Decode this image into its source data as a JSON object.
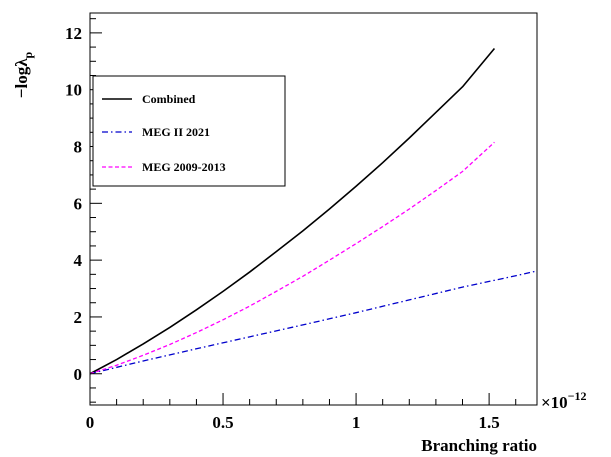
{
  "chart_data": {
    "type": "line",
    "title": "",
    "xlabel": "Branching ratio",
    "ylabel": "−logλ",
    "ylabel_subscript": "p",
    "x_multiplier": "×10",
    "x_multiplier_exp": "−12",
    "xlim": [
      0,
      1.68
    ],
    "ylim": [
      -1.1,
      12.7
    ],
    "x_ticks": [
      0,
      0.5,
      1,
      1.5
    ],
    "x_tick_labels": [
      "0",
      "0.5",
      "1",
      "1.5"
    ],
    "y_ticks": [
      0,
      2,
      4,
      6,
      8,
      10,
      12
    ],
    "y_tick_labels": [
      "0",
      "2",
      "4",
      "6",
      "8",
      "10",
      "12"
    ],
    "grid": false,
    "legend_position": "upper-left",
    "series": [
      {
        "name": "Combined",
        "color": "#000000",
        "style": "solid",
        "x": [
          0,
          0.1,
          0.2,
          0.3,
          0.4,
          0.5,
          0.6,
          0.7,
          0.8,
          0.9,
          1.0,
          1.1,
          1.2,
          1.3,
          1.4,
          1.52
        ],
        "y": [
          0,
          0.5,
          1.05,
          1.63,
          2.25,
          2.9,
          3.58,
          4.3,
          5.03,
          5.8,
          6.6,
          7.43,
          8.3,
          9.2,
          10.1,
          11.45
        ]
      },
      {
        "name": "MEG II 2021",
        "color": "#0000cc",
        "style": "dashdot",
        "x": [
          0,
          0.2,
          0.4,
          0.6,
          0.8,
          1.0,
          1.2,
          1.4,
          1.6,
          1.68
        ],
        "y": [
          0,
          0.45,
          0.88,
          1.3,
          1.72,
          2.15,
          2.6,
          3.05,
          3.45,
          3.62
        ]
      },
      {
        "name": "MEG 2009-2013",
        "color": "#ff00ff",
        "style": "dashed",
        "x": [
          0,
          0.1,
          0.2,
          0.3,
          0.4,
          0.5,
          0.6,
          0.7,
          0.8,
          0.9,
          1.0,
          1.1,
          1.2,
          1.3,
          1.4,
          1.52
        ],
        "y": [
          0,
          0.3,
          0.65,
          1.03,
          1.45,
          1.9,
          2.38,
          2.9,
          3.43,
          4.0,
          4.58,
          5.18,
          5.8,
          6.45,
          7.12,
          8.15
        ]
      }
    ]
  }
}
